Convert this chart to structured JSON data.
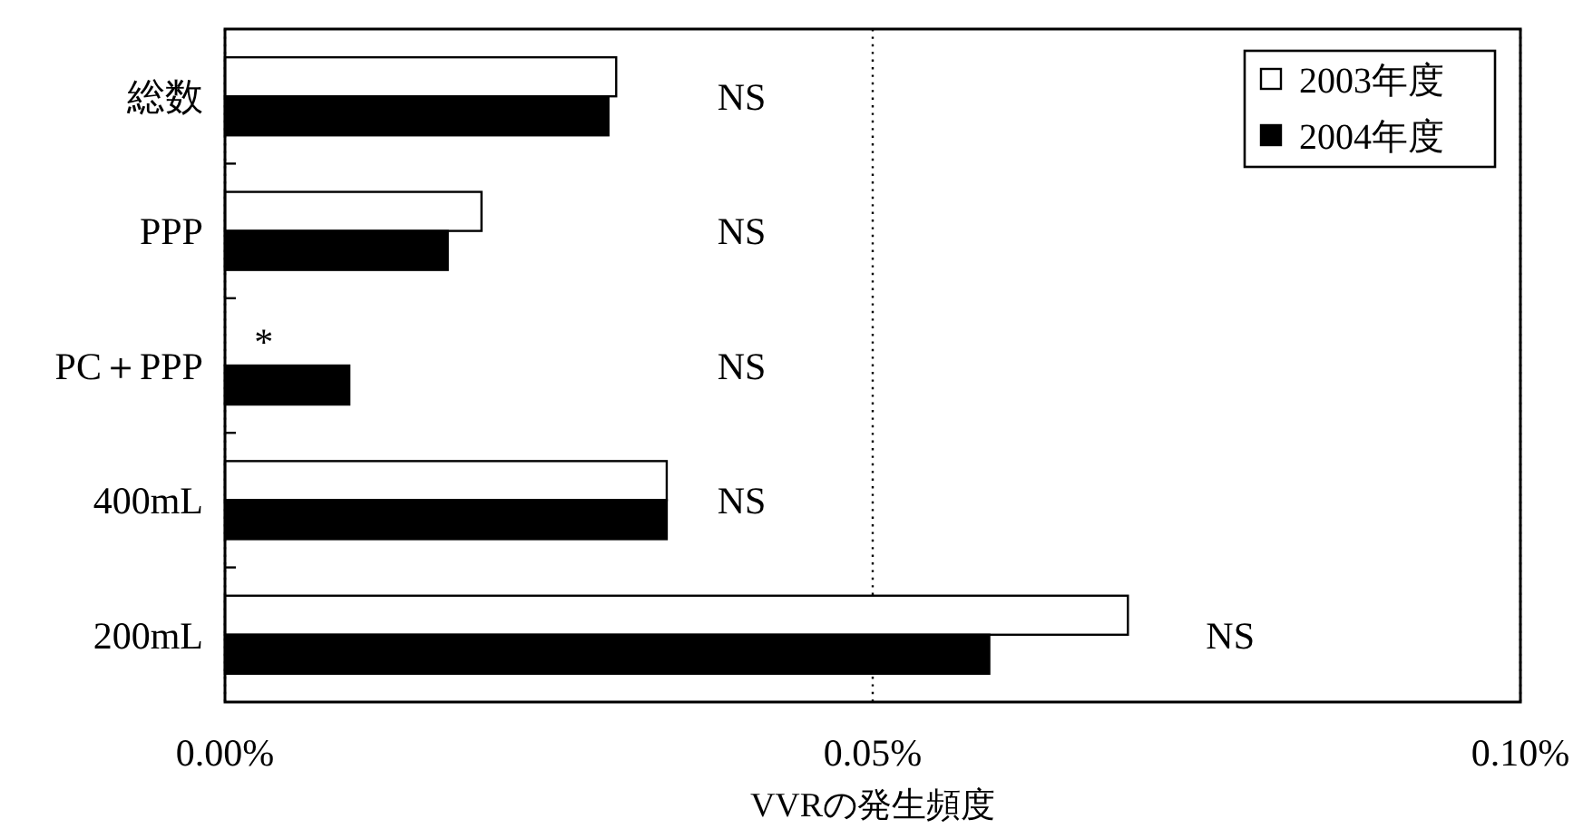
{
  "chart_data": {
    "type": "bar",
    "orientation": "horizontal",
    "categories": [
      "総数",
      "PPP",
      "PC＋PPP",
      "400mL",
      "200mL"
    ],
    "series": [
      {
        "name": "2003年度",
        "color": "#ffffff",
        "values": [
          0.0302,
          0.0198,
          0,
          0.0341,
          0.0697
        ]
      },
      {
        "name": "2004年度",
        "color": "#000000",
        "values": [
          0.0296,
          0.0172,
          0.0096,
          0.0341,
          0.059
        ]
      }
    ],
    "xlabel": "VVRの発生頻度",
    "xlim": [
      0,
      0.1
    ],
    "xticks": [
      {
        "value": 0,
        "label": "0.00%"
      },
      {
        "value": 0.05,
        "label": "0.05%"
      },
      {
        "value": 0.1,
        "label": "0.10%"
      }
    ],
    "grid": "x",
    "legend": "top right",
    "annotations": [
      "NS",
      "NS",
      "NS",
      "NS",
      "NS",
      {
        "text": "*",
        "x": 0.003,
        "y": "PC＋PPP"
      }
    ]
  }
}
